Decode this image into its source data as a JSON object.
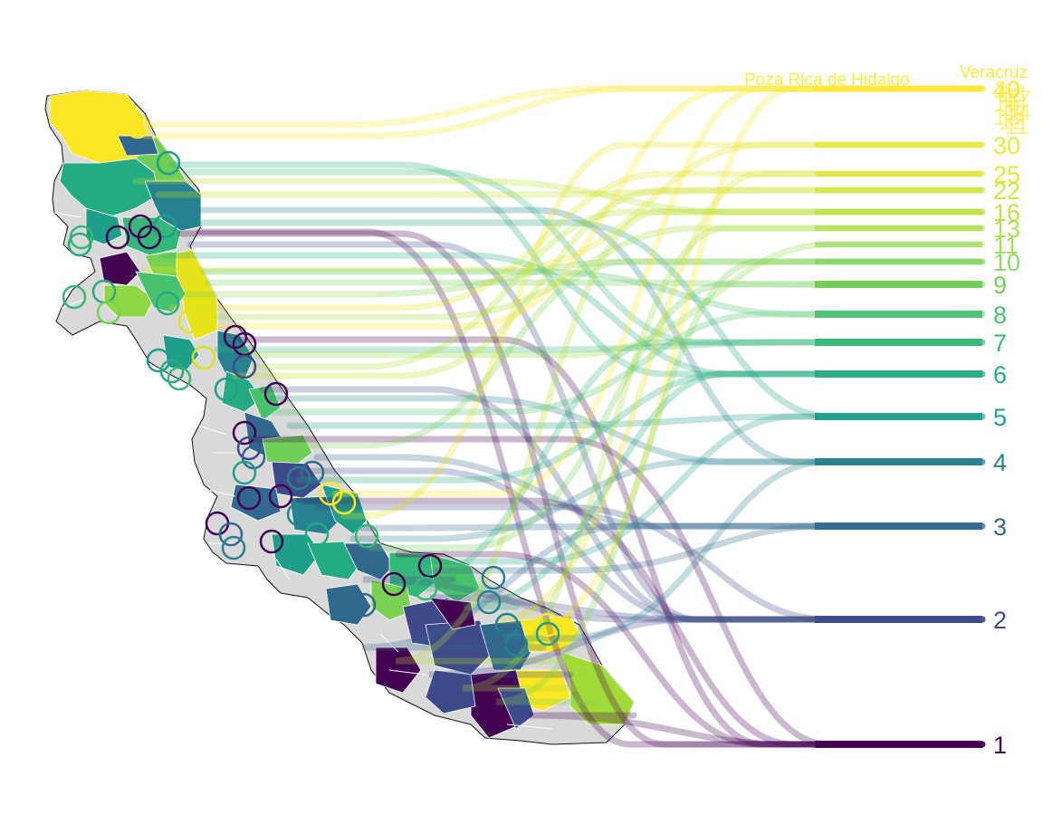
{
  "title": "",
  "labels": {
    "city_top": "Poza Rica de Hidalgo",
    "city_right": "Veracruz",
    "top_stack_rank_labels": [
      "19",
      "18",
      "17",
      "16",
      "15",
      "14",
      "13",
      "12",
      "11"
    ]
  },
  "ranks": [
    {
      "label": "1",
      "color": "#440154"
    },
    {
      "label": "2",
      "color": "#3e4a89"
    },
    {
      "label": "3",
      "color": "#31688e"
    },
    {
      "label": "4",
      "color": "#26828e"
    },
    {
      "label": "5",
      "color": "#1f9e89"
    },
    {
      "label": "6",
      "color": "#25ab82"
    },
    {
      "label": "7",
      "color": "#35b779"
    },
    {
      "label": "8",
      "color": "#4ac16d"
    },
    {
      "label": "9",
      "color": "#6ece58"
    },
    {
      "label": "10",
      "color": "#7ad151"
    },
    {
      "label": "11",
      "color": "#8fd744"
    },
    {
      "label": "13",
      "color": "#a2da37"
    },
    {
      "label": "16",
      "color": "#b5de2b"
    },
    {
      "label": "22",
      "color": "#c8e020"
    },
    {
      "label": "25",
      "color": "#dae319"
    },
    {
      "label": "30",
      "color": "#e4e419"
    },
    {
      "label": "40",
      "color": "#fde725"
    }
  ],
  "colors": {
    "no_data": "#d9d9d9",
    "outline": "#111111",
    "city_label": "#fde725"
  }
}
